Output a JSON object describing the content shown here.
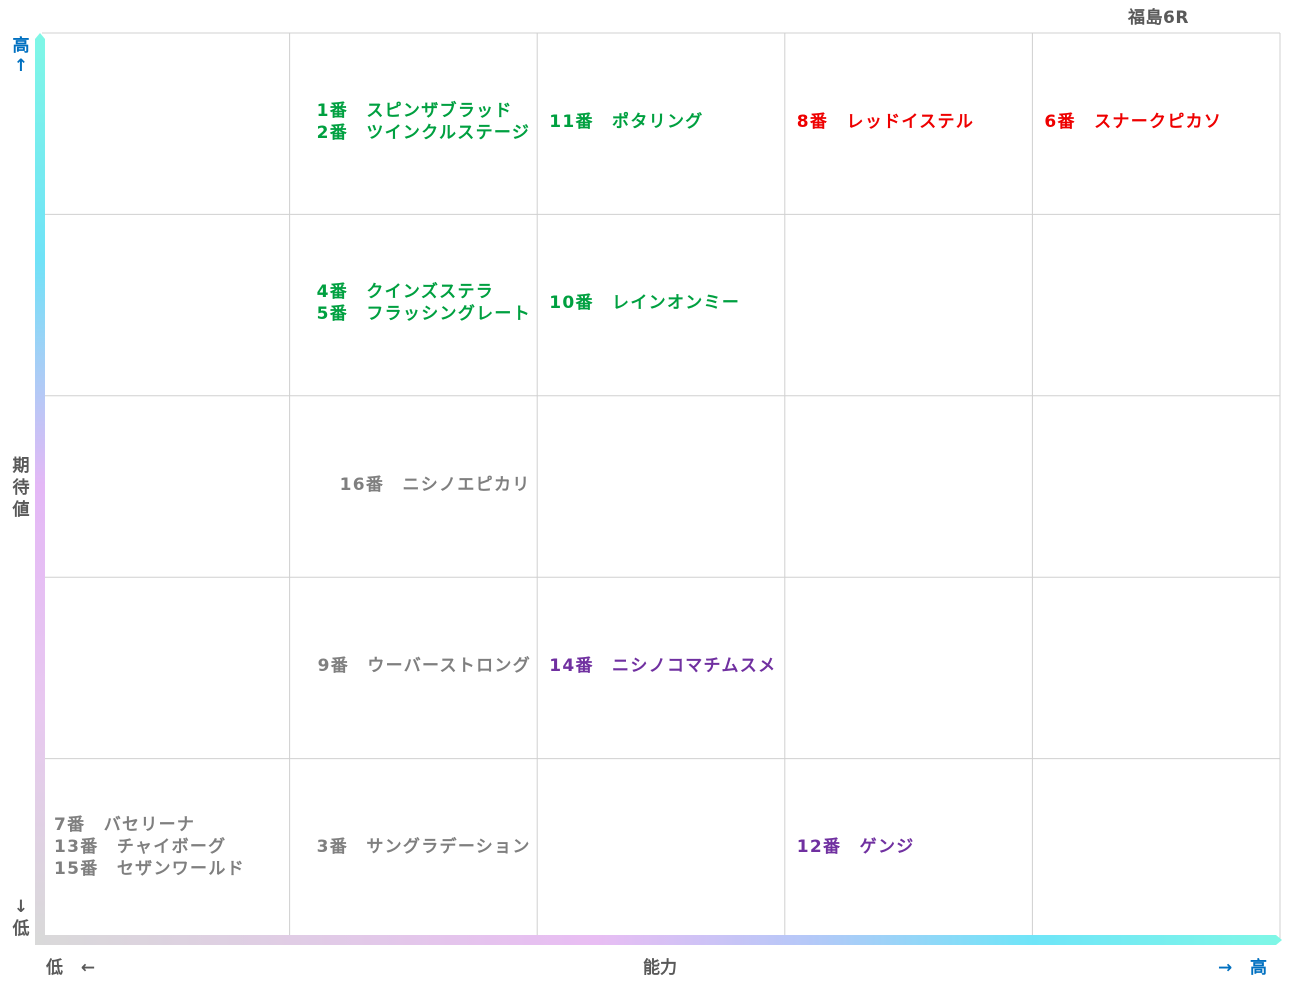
{
  "header": {
    "race": "福島6R"
  },
  "chart_data": {
    "type": "table",
    "xlabel": "能力",
    "ylabel": "期待値",
    "x_low": "低",
    "x_high": "高",
    "y_low": "低",
    "y_high": "高",
    "arrow_right": "→",
    "arrow_left": "←",
    "arrow_up": "↑",
    "arrow_down": "↓",
    "columns": 5,
    "rows": 5,
    "colors": {
      "green": "#00a040",
      "red": "#ee0000",
      "gray": "#7f7f7f",
      "purple": "#7030a0",
      "axis_label": "#0070c0",
      "grid": "#d0d0d0"
    },
    "entries": [
      {
        "col": 1,
        "row": 0,
        "color": "green",
        "lines": [
          "1番　スピンザブラッド",
          "2番　ツインクルステージ"
        ]
      },
      {
        "col": 2,
        "row": 0,
        "color": "green",
        "lines": [
          "11番　ポタリング"
        ]
      },
      {
        "col": 3,
        "row": 0,
        "color": "red",
        "lines": [
          "8番　レッドイステル"
        ]
      },
      {
        "col": 4,
        "row": 0,
        "color": "red",
        "lines": [
          "6番　スナークピカソ"
        ]
      },
      {
        "col": 1,
        "row": 1,
        "color": "green",
        "lines": [
          "4番　クインズステラ",
          "5番　フラッシングレート"
        ]
      },
      {
        "col": 2,
        "row": 1,
        "color": "green",
        "lines": [
          "10番　レインオンミー"
        ]
      },
      {
        "col": 1,
        "row": 2,
        "color": "gray",
        "lines": [
          "16番　ニシノエピカリ"
        ]
      },
      {
        "col": 1,
        "row": 3,
        "color": "gray",
        "lines": [
          "9番　ウーバーストロング"
        ]
      },
      {
        "col": 2,
        "row": 3,
        "color": "purple",
        "lines": [
          "14番　ニシノコマチムスメ"
        ]
      },
      {
        "col": 0,
        "row": 4,
        "color": "gray",
        "lines": [
          "7番　バセリーナ",
          "13番　チャイボーグ",
          "15番　セザンワールド"
        ]
      },
      {
        "col": 1,
        "row": 4,
        "color": "gray",
        "lines": [
          "3番　サングラデーション"
        ]
      },
      {
        "col": 3,
        "row": 4,
        "color": "purple",
        "lines": [
          "12番　ゲンジ"
        ]
      }
    ]
  }
}
